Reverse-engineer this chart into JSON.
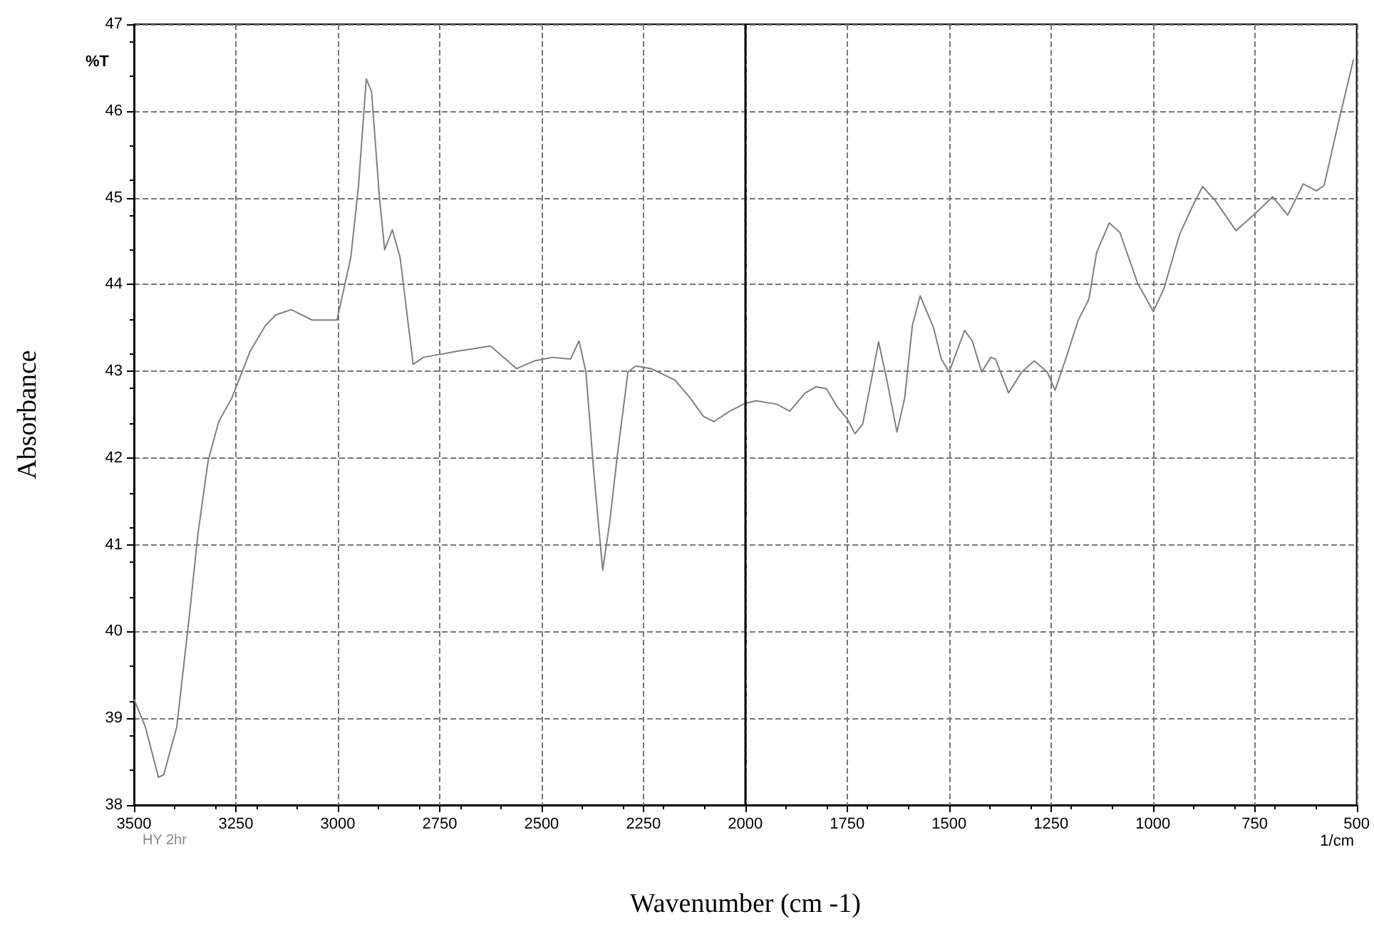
{
  "chart_data": {
    "type": "line",
    "xlabel": "Wavenumber (cm -1)",
    "ylabel": "Absorbance",
    "annotations": [
      "%T",
      "HY 2hr",
      "1/cm"
    ],
    "xlim": [
      3500,
      500
    ],
    "xticks": [
      3500,
      3250,
      3000,
      2750,
      2500,
      2250,
      2000,
      1750,
      1500,
      1250,
      1000,
      750,
      500
    ],
    "ylim": [
      38,
      47
    ],
    "yticks": [
      38,
      39,
      40,
      41,
      42,
      43,
      44,
      45,
      46,
      47
    ],
    "grid": true,
    "marker": "none",
    "line_style": "solid",
    "ref_lines": [
      {
        "axis": "x",
        "value": 2000,
        "label": null,
        "color": "#000000",
        "line_style": "solid"
      }
    ],
    "series": [
      {
        "color": "#808080",
        "x": [
          3500,
          3472,
          3440,
          3427,
          3395,
          3363,
          3343,
          3318,
          3292,
          3260,
          3215,
          3177,
          3152,
          3114,
          3063,
          3002,
          2968,
          2949,
          2930,
          2917,
          2898,
          2885,
          2866,
          2847,
          2815,
          2790,
          2707,
          2625,
          2561,
          2517,
          2474,
          2429,
          2408,
          2391,
          2372,
          2350,
          2333,
          2314,
          2288,
          2269,
          2231,
          2173,
          2135,
          2103,
          2077,
          2038,
          2000,
          1974,
          1923,
          1891,
          1853,
          1827,
          1801,
          1776,
          1750,
          1731,
          1712,
          1692,
          1673,
          1654,
          1628,
          1609,
          1590,
          1571,
          1538,
          1519,
          1500,
          1462,
          1443,
          1420,
          1398,
          1386,
          1354,
          1322,
          1291,
          1259,
          1240,
          1214,
          1183,
          1157,
          1138,
          1107,
          1081,
          1037,
          999,
          973,
          935,
          903,
          878,
          846,
          796,
          751,
          706,
          669,
          631,
          599,
          580,
          542,
          508
        ],
        "values": [
          39.22,
          38.9,
          38.32,
          38.35,
          38.9,
          40.23,
          41.13,
          41.97,
          42.42,
          42.69,
          43.23,
          43.53,
          43.65,
          43.71,
          43.59,
          43.59,
          44.31,
          45.14,
          46.37,
          46.22,
          45.02,
          44.4,
          44.63,
          44.31,
          43.08,
          43.16,
          43.23,
          43.29,
          43.03,
          43.12,
          43.16,
          43.14,
          43.35,
          42.99,
          41.85,
          40.71,
          41.25,
          42.03,
          42.99,
          43.06,
          43.03,
          42.9,
          42.69,
          42.48,
          42.42,
          42.54,
          42.63,
          42.66,
          42.62,
          42.54,
          42.75,
          42.82,
          42.8,
          42.6,
          42.45,
          42.28,
          42.39,
          42.87,
          43.34,
          42.93,
          42.3,
          42.69,
          43.53,
          43.87,
          43.5,
          43.14,
          42.99,
          43.47,
          43.35,
          42.99,
          43.16,
          43.14,
          42.75,
          42.99,
          43.12,
          42.99,
          42.78,
          43.14,
          43.59,
          43.83,
          44.37,
          44.71,
          44.6,
          44.01,
          43.69,
          43.95,
          44.57,
          44.9,
          45.13,
          44.96,
          44.62,
          44.81,
          45.01,
          44.8,
          45.16,
          45.08,
          45.14,
          45.92,
          46.59
        ]
      }
    ]
  }
}
